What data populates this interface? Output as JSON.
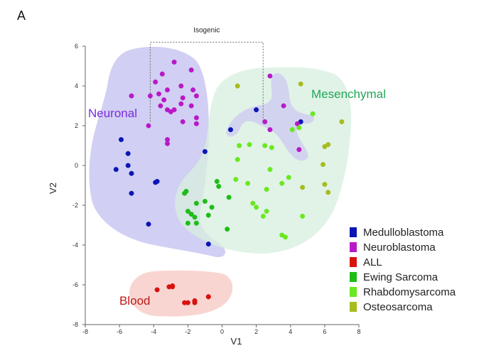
{
  "panel_letter": "A",
  "chart_data": {
    "type": "scatter",
    "xlabel": "V1",
    "ylabel": "V2",
    "xlim": [
      -8,
      8
    ],
    "ylim": [
      -8,
      6
    ],
    "x_ticks": [
      -8,
      -6,
      -4,
      -2,
      0,
      2,
      4,
      6,
      8
    ],
    "y_ticks": [
      -8,
      -6,
      -4,
      -2,
      0,
      2,
      4,
      6
    ],
    "grid": false,
    "legend_position": "bottom-right",
    "regions": [
      {
        "label": "Neuronal",
        "color": "#cccaf2",
        "label_color": "#7b2be2"
      },
      {
        "label": "Mesenchymal",
        "color": "#d7efdf",
        "label_color": "#22a55a"
      },
      {
        "label": "Blood",
        "color": "#f8d0cc",
        "label_color": "#c01818"
      }
    ],
    "annotation": {
      "label": "Isogenic",
      "x_range": [
        -4.2,
        2.4
      ],
      "top_y": 6.2,
      "bottom_y": 2.2
    },
    "series": [
      {
        "name": "Medulloblastoma",
        "color": "#0a16b4",
        "points": [
          [
            -6.2,
            -0.2
          ],
          [
            -5.9,
            1.3
          ],
          [
            -5.5,
            0.6
          ],
          [
            -5.5,
            0.0
          ],
          [
            -5.3,
            -0.4
          ],
          [
            -5.3,
            -1.4
          ],
          [
            -3.8,
            -0.8
          ],
          [
            -3.9,
            -0.85
          ],
          [
            -4.3,
            -2.95
          ],
          [
            -1.0,
            0.7
          ],
          [
            -0.8,
            -3.95
          ],
          [
            0.5,
            1.8
          ],
          [
            2.0,
            2.8
          ],
          [
            4.6,
            2.2
          ]
        ]
      },
      {
        "name": "Neuroblastoma",
        "color": "#b819c7",
        "points": [
          [
            -5.3,
            3.5
          ],
          [
            -4.2,
            3.5
          ],
          [
            -3.6,
            3.0
          ],
          [
            -3.7,
            3.6
          ],
          [
            -3.9,
            4.2
          ],
          [
            -3.4,
            3.3
          ],
          [
            -3.2,
            2.8
          ],
          [
            -3.2,
            3.8
          ],
          [
            -2.8,
            2.8
          ],
          [
            -3.0,
            2.7
          ],
          [
            -3.5,
            4.6
          ],
          [
            -2.8,
            5.2
          ],
          [
            -2.4,
            4.0
          ],
          [
            -2.3,
            3.4
          ],
          [
            -1.8,
            3.0
          ],
          [
            -1.7,
            3.8
          ],
          [
            -1.8,
            4.8
          ],
          [
            -1.5,
            3.5
          ],
          [
            -2.4,
            3.1
          ],
          [
            -2.3,
            2.2
          ],
          [
            -4.3,
            2.0
          ],
          [
            -3.2,
            1.3
          ],
          [
            -3.2,
            1.1
          ],
          [
            -1.5,
            2.1
          ],
          [
            -1.5,
            2.4
          ],
          [
            2.5,
            2.2
          ],
          [
            2.8,
            1.8
          ],
          [
            2.8,
            4.5
          ],
          [
            3.6,
            3.0
          ],
          [
            4.4,
            2.1
          ],
          [
            4.5,
            0.8
          ]
        ]
      },
      {
        "name": "ALL",
        "color": "#d8130e",
        "points": [
          [
            -3.8,
            -6.25
          ],
          [
            -3.1,
            -6.1
          ],
          [
            -2.9,
            -6.05
          ],
          [
            -2.9,
            -6.1
          ],
          [
            -2.2,
            -6.9
          ],
          [
            -2.0,
            -6.9
          ],
          [
            -1.6,
            -6.85
          ],
          [
            -1.6,
            -6.8
          ],
          [
            -1.6,
            -6.9
          ],
          [
            -0.8,
            -6.6
          ],
          [
            -0.8,
            -6.6
          ]
        ]
      },
      {
        "name": "Ewing Sarcoma",
        "color": "#1fbc17",
        "points": [
          [
            -2.0,
            -2.3
          ],
          [
            -2.2,
            -1.4
          ],
          [
            -2.1,
            -1.3
          ],
          [
            -1.5,
            -1.9
          ],
          [
            -1.8,
            -2.45
          ],
          [
            -2.0,
            -2.9
          ],
          [
            -1.6,
            -2.6
          ],
          [
            -1.5,
            -2.9
          ],
          [
            -1.0,
            -1.8
          ],
          [
            -0.8,
            -2.5
          ],
          [
            -0.6,
            -2.1
          ],
          [
            -0.2,
            -1.05
          ],
          [
            -0.3,
            -0.8
          ],
          [
            0.4,
            -1.6
          ],
          [
            0.3,
            -3.2
          ]
        ]
      },
      {
        "name": "Rhabdomysarcoma",
        "color": "#6ae81f",
        "points": [
          [
            1.0,
            1.0
          ],
          [
            1.6,
            1.05
          ],
          [
            0.9,
            0.3
          ],
          [
            2.5,
            1.0
          ],
          [
            2.9,
            0.9
          ],
          [
            2.8,
            -0.2
          ],
          [
            1.8,
            -1.9
          ],
          [
            2.0,
            -2.1
          ],
          [
            2.6,
            -2.3
          ],
          [
            1.5,
            -0.9
          ],
          [
            0.8,
            -0.7
          ],
          [
            2.6,
            -1.2
          ],
          [
            2.4,
            -2.55
          ],
          [
            3.5,
            -0.9
          ],
          [
            3.9,
            -0.6
          ],
          [
            4.1,
            1.8
          ],
          [
            4.5,
            1.9
          ],
          [
            5.3,
            2.6
          ],
          [
            3.7,
            -3.6
          ],
          [
            4.7,
            -2.55
          ],
          [
            3.5,
            -3.5
          ]
        ]
      },
      {
        "name": "Osteosarcoma",
        "color": "#a7bc1e",
        "points": [
          [
            0.9,
            4.0
          ],
          [
            4.6,
            4.1
          ],
          [
            6.0,
            0.95
          ],
          [
            6.2,
            1.05
          ],
          [
            7.0,
            2.2
          ],
          [
            5.9,
            0.05
          ],
          [
            6.0,
            -0.95
          ],
          [
            6.2,
            -1.35
          ],
          [
            4.7,
            -1.1
          ]
        ]
      }
    ]
  }
}
